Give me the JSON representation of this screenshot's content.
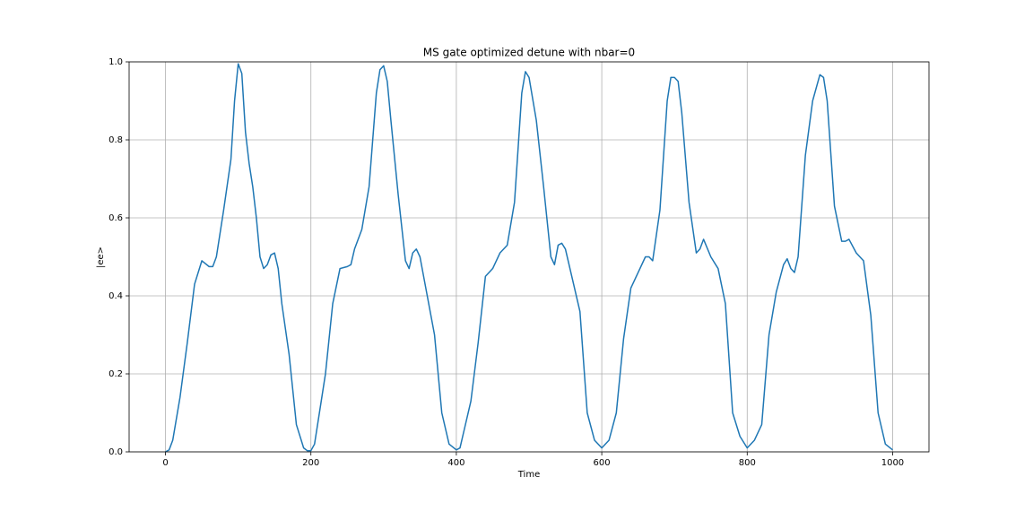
{
  "chart_data": {
    "type": "line",
    "title": "MS gate optimized detune with nbar=0",
    "x_label": "Time",
    "y_label": "|ee>",
    "x": [
      0,
      5,
      10,
      20,
      30,
      40,
      50,
      60,
      65,
      70,
      80,
      90,
      95,
      100,
      105,
      110,
      115,
      120,
      125,
      130,
      135,
      140,
      145,
      150,
      155,
      160,
      170,
      180,
      190,
      195,
      200,
      205,
      210,
      220,
      230,
      240,
      250,
      255,
      260,
      270,
      280,
      290,
      295,
      300,
      305,
      310,
      320,
      330,
      335,
      340,
      345,
      350,
      360,
      370,
      380,
      390,
      400,
      405,
      410,
      420,
      430,
      440,
      450,
      460,
      470,
      480,
      490,
      495,
      500,
      510,
      520,
      530,
      535,
      540,
      545,
      550,
      560,
      570,
      580,
      590,
      600,
      610,
      620,
      630,
      640,
      650,
      660,
      665,
      670,
      680,
      690,
      695,
      700,
      705,
      710,
      720,
      730,
      735,
      740,
      750,
      760,
      770,
      780,
      790,
      800,
      810,
      820,
      830,
      840,
      850,
      855,
      860,
      865,
      870,
      880,
      890,
      900,
      905,
      910,
      920,
      930,
      935,
      940,
      950,
      960,
      970,
      980,
      990,
      1000
    ],
    "series": [
      {
        "name": "|ee>",
        "color": "#1f77b4",
        "values": [
          0.0,
          0.005,
          0.03,
          0.14,
          0.28,
          0.43,
          0.49,
          0.475,
          0.475,
          0.5,
          0.62,
          0.75,
          0.9,
          0.995,
          0.97,
          0.82,
          0.74,
          0.68,
          0.6,
          0.5,
          0.47,
          0.48,
          0.505,
          0.51,
          0.47,
          0.38,
          0.25,
          0.07,
          0.01,
          0.003,
          0.003,
          0.02,
          0.08,
          0.2,
          0.38,
          0.47,
          0.475,
          0.48,
          0.52,
          0.57,
          0.68,
          0.92,
          0.98,
          0.99,
          0.95,
          0.85,
          0.66,
          0.49,
          0.47,
          0.51,
          0.52,
          0.5,
          0.4,
          0.3,
          0.1,
          0.02,
          0.005,
          0.01,
          0.05,
          0.13,
          0.28,
          0.45,
          0.47,
          0.51,
          0.53,
          0.64,
          0.92,
          0.975,
          0.96,
          0.85,
          0.68,
          0.5,
          0.48,
          0.53,
          0.535,
          0.52,
          0.44,
          0.36,
          0.1,
          0.03,
          0.01,
          0.03,
          0.1,
          0.29,
          0.42,
          0.46,
          0.5,
          0.5,
          0.49,
          0.62,
          0.9,
          0.96,
          0.96,
          0.95,
          0.87,
          0.64,
          0.51,
          0.52,
          0.545,
          0.5,
          0.47,
          0.38,
          0.1,
          0.04,
          0.01,
          0.03,
          0.07,
          0.3,
          0.41,
          0.48,
          0.495,
          0.47,
          0.46,
          0.5,
          0.76,
          0.9,
          0.967,
          0.96,
          0.9,
          0.63,
          0.54,
          0.54,
          0.545,
          0.51,
          0.49,
          0.35,
          0.1,
          0.02,
          0.005
        ]
      }
    ],
    "xlim": [
      -50,
      1050
    ],
    "ylim": [
      0,
      1
    ],
    "xticks": [
      0,
      200,
      400,
      600,
      800,
      1000
    ],
    "yticks": [
      {
        "value": 0,
        "label": "0.0"
      },
      0.2,
      0.4,
      0.6,
      0.8,
      {
        "value": 1,
        "label": "1.0"
      }
    ],
    "grid": true
  }
}
